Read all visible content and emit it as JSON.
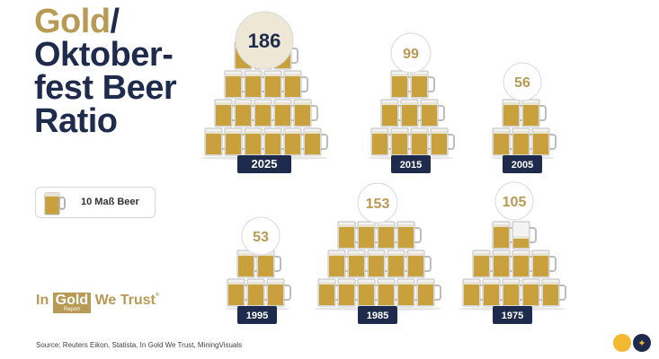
{
  "header": {
    "title_part1": "Gold",
    "title_slash": "/",
    "title_line2": "Oktober-",
    "title_line3": "fest Beer",
    "title_line4": "Ratio"
  },
  "legend": {
    "label": "10 Maß Beer"
  },
  "logo": {
    "left": "In",
    "box": "Gold",
    "box_sub": "Report",
    "right": "We Trust",
    "reg": "®"
  },
  "source": "Source: Reuters Eikon, Statista, In Gold We Trust, MiningVisuals",
  "colors": {
    "navy": "#1f2b4d",
    "gold": "#b89a55",
    "beer": "#c9a13c",
    "foam": "#e9e3d3"
  },
  "chart_data": {
    "type": "pictogram",
    "unit": "10 Maß Beer per mug",
    "categories": [
      "2025",
      "2015",
      "2005",
      "1995",
      "1985",
      "1975"
    ],
    "values": [
      186,
      99,
      56,
      53,
      153,
      105
    ]
  }
}
